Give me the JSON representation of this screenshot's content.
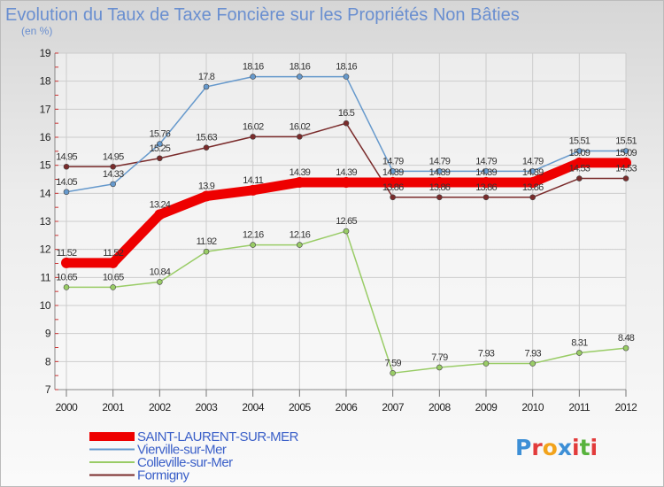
{
  "chart_data": {
    "type": "line",
    "title": "Evolution du Taux de Taxe Foncière sur les Propriétés Non Bâties",
    "subtitle": "(en %)",
    "x": [
      "2000",
      "2001",
      "2002",
      "2003",
      "2004",
      "2005",
      "2006",
      "2007",
      "2008",
      "2009",
      "2010",
      "2011",
      "2012"
    ],
    "ylim": [
      7,
      19
    ],
    "yticks": [
      "7",
      "8",
      "9",
      "10",
      "11",
      "12",
      "13",
      "14",
      "15",
      "16",
      "17",
      "18",
      "19"
    ],
    "grid": true,
    "legend_position": "bottom-left",
    "series": [
      {
        "name": "SAINT-LAURENT-SUR-MER",
        "color": "#ee0000",
        "values": [
          11.52,
          11.52,
          13.24,
          13.9,
          14.11,
          14.39,
          14.39,
          14.39,
          14.39,
          14.39,
          14.39,
          15.09,
          15.09
        ],
        "labels": [
          "11.52",
          "11.52",
          "13.24",
          "13.9",
          "14.11",
          "14.39",
          "14.39",
          "14.39",
          "14.39",
          "14.39",
          "14.39",
          "15.09",
          "15.09"
        ]
      },
      {
        "name": "Vierville-sur-Mer",
        "color": "#6699cc",
        "values": [
          14.05,
          14.33,
          15.76,
          17.8,
          18.16,
          18.16,
          18.16,
          14.79,
          14.79,
          14.79,
          14.79,
          15.51,
          15.51
        ],
        "labels": [
          "14.05",
          "14.33",
          "15.76",
          "17.8",
          "18.16",
          "18.16",
          "18.16",
          "14.79",
          "14.79",
          "14.79",
          "14.79",
          "15.51",
          "15.51"
        ]
      },
      {
        "name": "Colleville-sur-Mer",
        "color": "#99cc66",
        "values": [
          10.65,
          10.65,
          10.84,
          11.92,
          12.16,
          12.16,
          12.65,
          7.59,
          7.79,
          7.93,
          7.93,
          8.31,
          8.48
        ],
        "labels": [
          "10.65",
          "10.65",
          "10.84",
          "11.92",
          "12.16",
          "12.16",
          "12.65",
          "7.59",
          "7.79",
          "7.93",
          "7.93",
          "8.31",
          "8.48"
        ]
      },
      {
        "name": "Formigny",
        "color": "#7a2b2b",
        "values": [
          14.95,
          14.95,
          15.25,
          15.63,
          16.02,
          16.02,
          16.5,
          13.86,
          13.86,
          13.86,
          13.86,
          14.53,
          14.53
        ],
        "labels": [
          "14.95",
          "14.95",
          "15.25",
          "15.63",
          "16.02",
          "16.02",
          "16.5",
          "13.86",
          "13.86",
          "13.86",
          "13.86",
          "14.53",
          "14.53"
        ]
      }
    ]
  },
  "logo": {
    "letters": [
      "P",
      "r",
      "o",
      "x",
      "i",
      "t",
      "i"
    ],
    "colors": [
      "#3d8fd6",
      "#e23b3b",
      "#f2a31c",
      "#3d8fd6",
      "#e23b3b",
      "#58b33d",
      "#e23b3b"
    ]
  }
}
